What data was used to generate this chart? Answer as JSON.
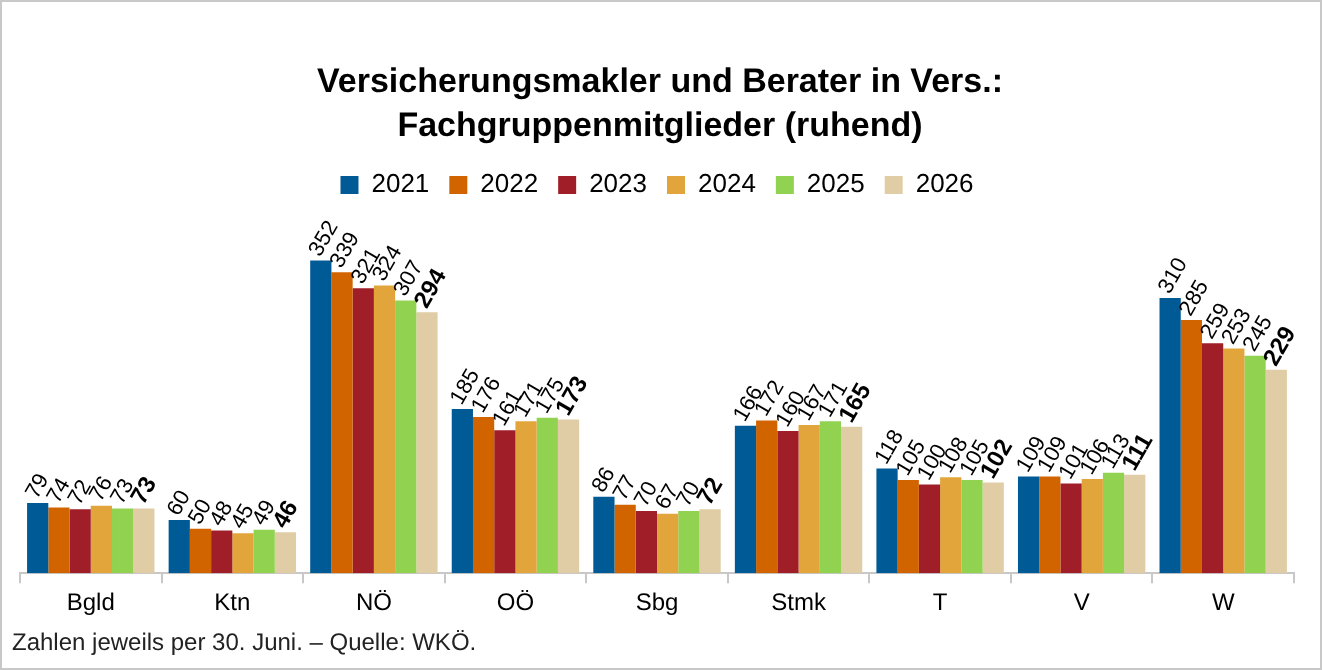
{
  "chart_data": {
    "type": "bar",
    "title": "Versicherungsmakler und Berater in Vers.: Fachgruppenmitglieder (ruhend)",
    "categories": [
      "Bgld",
      "Ktn",
      "NÖ",
      "OÖ",
      "Sbg",
      "Stmk",
      "T",
      "V",
      "W"
    ],
    "series": [
      {
        "name": "2021",
        "color": "#005a96",
        "values": [
          79,
          60,
          352,
          185,
          86,
          166,
          118,
          109,
          310
        ]
      },
      {
        "name": "2022",
        "color": "#d26400",
        "values": [
          74,
          50,
          339,
          176,
          77,
          172,
          105,
          109,
          285
        ]
      },
      {
        "name": "2023",
        "color": "#a01e28",
        "values": [
          72,
          48,
          321,
          161,
          70,
          160,
          100,
          101,
          259
        ]
      },
      {
        "name": "2024",
        "color": "#e1a53c",
        "values": [
          76,
          45,
          324,
          171,
          67,
          167,
          108,
          106,
          253
        ]
      },
      {
        "name": "2025",
        "color": "#91d250",
        "values": [
          73,
          49,
          307,
          175,
          70,
          171,
          105,
          113,
          245
        ]
      },
      {
        "name": "2026",
        "color": "#e1cda5",
        "values": [
          73,
          46,
          294,
          173,
          72,
          165,
          102,
          111,
          229
        ]
      }
    ],
    "data_labels": true,
    "grid": false,
    "legend": "top",
    "annotations": [
      "Zahlen jeweils per 30. Juni. – Quelle: WKÖ."
    ]
  }
}
